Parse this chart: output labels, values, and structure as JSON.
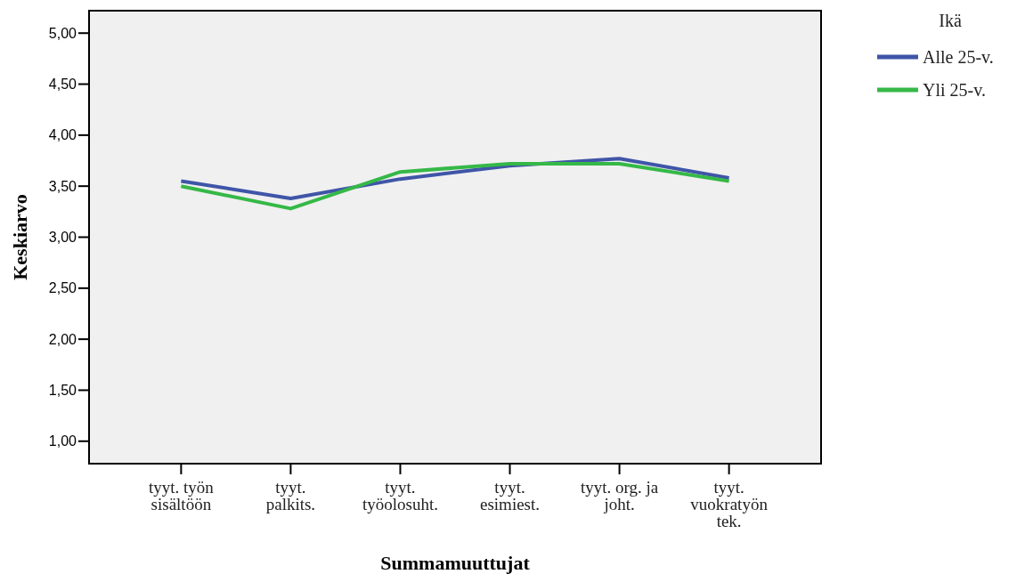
{
  "chart_data": {
    "type": "line",
    "xlabel": "Summamuuttujat",
    "ylabel": "Keskiarvo",
    "legend_title": "Ikä",
    "legend": "top right",
    "grid": false,
    "marker": "none",
    "line_style": "solid",
    "categories": [
      "tyyt. työn\nsisältöön",
      "tyyt.\npalkits.",
      "tyyt.\ntyöolosuht.",
      "tyyt.\nesimiest.",
      "tyyt. org. ja\njoht.",
      "tyyt.\nvuokratyön\ntek."
    ],
    "ylim": [
      0.78,
      5.22
    ],
    "yticks": [
      {
        "value": 1,
        "label": "1,00"
      },
      {
        "value": 1.5,
        "label": "1,50"
      },
      {
        "value": 2,
        "label": "2,00"
      },
      {
        "value": 2.5,
        "label": "2,50"
      },
      {
        "value": 3,
        "label": "3,00"
      },
      {
        "value": 3.5,
        "label": "3,50"
      },
      {
        "value": 4,
        "label": "4,00"
      },
      {
        "value": 4.5,
        "label": "4,50"
      },
      {
        "value": 5,
        "label": "5,00"
      }
    ],
    "series": [
      {
        "name": "Alle 25-v.",
        "color": "#3f55a8",
        "values": [
          3.55,
          3.38,
          3.57,
          3.7,
          3.77,
          3.58
        ]
      },
      {
        "name": "Yli 25-v.",
        "color": "#35b847",
        "values": [
          3.5,
          3.28,
          3.64,
          3.72,
          3.72,
          3.55
        ]
      }
    ]
  }
}
